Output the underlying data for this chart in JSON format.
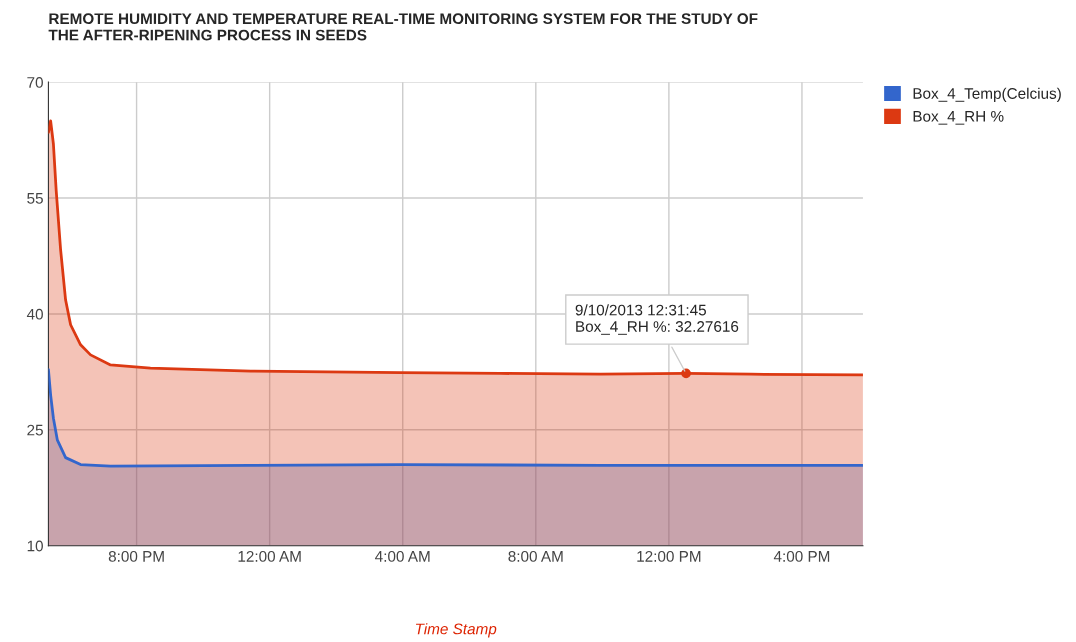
{
  "chart_data": {
    "type": "area",
    "title": "REMOTE HUMIDITY AND TEMPERATURE REAL-TIME MONITORING SYSTEM FOR THE STUDY OF\nTHE AFTER-RIPENING PROCESS IN SEEDS",
    "xlabel": "Time Stamp",
    "series": [
      {
        "name": "Box_4_Temp(Celcius)",
        "color": "#3366cc",
        "x": [
          "2013-09-09T17:21",
          "2013-09-09T17:25",
          "2013-09-09T17:30",
          "2013-09-09T17:37",
          "2013-09-09T17:52",
          "2013-09-09T18:19",
          "2013-09-09T19:13",
          "2013-09-09T23:26",
          "2013-09-10T03:56",
          "2013-09-10T09:57",
          "2013-09-10T17:50"
        ],
        "values": [
          32.8,
          29.5,
          26.5,
          23.7,
          21.4,
          20.5,
          20.3,
          20.4,
          20.5,
          20.4,
          20.4
        ]
      },
      {
        "name": "Box_4_RH %",
        "color": "#dc3912",
        "x": [
          "2013-09-09T17:21",
          "2013-09-09T17:25",
          "2013-09-09T17:30",
          "2013-09-09T17:35",
          "2013-09-09T17:43",
          "2013-09-09T17:52",
          "2013-09-09T18:01",
          "2013-09-09T18:19",
          "2013-09-09T18:37",
          "2013-09-09T19:13",
          "2013-09-09T20:25",
          "2013-09-09T23:26",
          "2013-09-10T03:56",
          "2013-09-10T06:56",
          "2013-09-10T09:57",
          "2013-09-10T12:31",
          "2013-09-10T14:28",
          "2013-09-10T17:50"
        ],
        "values": [
          63.5,
          65.0,
          62.0,
          56.0,
          48.3,
          41.8,
          38.6,
          36.0,
          34.7,
          33.4,
          33.0,
          32.6,
          32.4,
          32.3,
          32.2,
          32.3,
          32.2,
          32.1
        ]
      }
    ],
    "xlim": [
      "2013-09-09T17:21",
      "2013-09-10T17:50"
    ],
    "xticks": [
      {
        "value": "2013-09-09T20:00",
        "label": "8:00 PM"
      },
      {
        "value": "2013-09-10T00:00",
        "label": "12:00 AM"
      },
      {
        "value": "2013-09-10T04:00",
        "label": "4:00 AM"
      },
      {
        "value": "2013-09-10T08:00",
        "label": "8:00 AM"
      },
      {
        "value": "2013-09-10T12:00",
        "label": "12:00 PM"
      },
      {
        "value": "2013-09-10T16:00",
        "label": "4:00 PM"
      }
    ],
    "ylim": [
      10,
      70
    ],
    "yticks": [
      10,
      25,
      40,
      55,
      70
    ],
    "grid": true,
    "legend": "top right",
    "annotations": [
      {
        "text": "9/10/2013 12:31:45\nBox_4_RH %: 32.27616",
        "x": "2013-09-10T12:31",
        "y": 32.3
      }
    ]
  }
}
